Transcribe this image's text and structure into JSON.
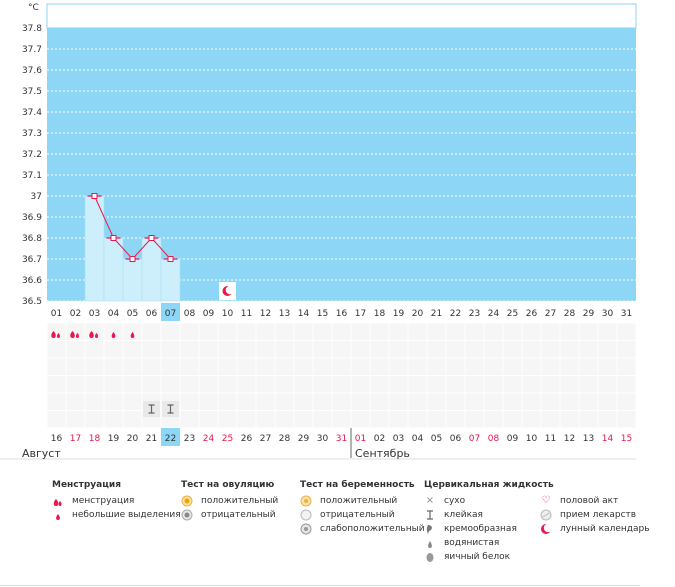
{
  "chart_data": {
    "type": "line",
    "ylabel": "°C",
    "y_ticks": [
      "37.8",
      "37.7",
      "37.6",
      "37.5",
      "37.4",
      "37.3",
      "37.2",
      "37.1",
      "37",
      "36.9",
      "36.8",
      "36.7",
      "36.6",
      "36.5"
    ],
    "ylim": [
      36.5,
      37.8
    ],
    "day_labels": [
      "01",
      "02",
      "03",
      "04",
      "05",
      "06",
      "07",
      "08",
      "09",
      "10",
      "11",
      "12",
      "13",
      "14",
      "15",
      "16",
      "17",
      "18",
      "19",
      "20",
      "21",
      "22",
      "23",
      "24",
      "25",
      "26",
      "27",
      "28",
      "29",
      "30",
      "31"
    ],
    "today_index": 6,
    "temps": [
      {
        "day": 3,
        "value": 37.0
      },
      {
        "day": 4,
        "value": 36.8
      },
      {
        "day": 5,
        "value": 36.7
      },
      {
        "day": 6,
        "value": 36.8
      },
      {
        "day": 7,
        "value": 36.7
      }
    ],
    "moon_day": 10,
    "menstruation": [
      {
        "day": 1,
        "type": "full"
      },
      {
        "day": 2,
        "type": "full"
      },
      {
        "day": 3,
        "type": "full"
      },
      {
        "day": 4,
        "type": "light"
      },
      {
        "day": 5,
        "type": "light"
      }
    ],
    "cervical_sticky_days": [
      6,
      7
    ],
    "cycle_dates": [
      {
        "t": "16",
        "red": false
      },
      {
        "t": "17",
        "red": true
      },
      {
        "t": "18",
        "red": true
      },
      {
        "t": "19",
        "red": false
      },
      {
        "t": "20",
        "red": false
      },
      {
        "t": "21",
        "red": false
      },
      {
        "t": "22",
        "red": false
      },
      {
        "t": "23",
        "red": false
      },
      {
        "t": "24",
        "red": true
      },
      {
        "t": "25",
        "red": true
      },
      {
        "t": "26",
        "red": false
      },
      {
        "t": "27",
        "red": false
      },
      {
        "t": "28",
        "red": false
      },
      {
        "t": "29",
        "red": false
      },
      {
        "t": "30",
        "red": false
      },
      {
        "t": "31",
        "red": true
      },
      {
        "t": "01",
        "red": true
      },
      {
        "t": "02",
        "red": false
      },
      {
        "t": "03",
        "red": false
      },
      {
        "t": "04",
        "red": false
      },
      {
        "t": "05",
        "red": false
      },
      {
        "t": "06",
        "red": false
      },
      {
        "t": "07",
        "red": true
      },
      {
        "t": "08",
        "red": true
      },
      {
        "t": "09",
        "red": false
      },
      {
        "t": "10",
        "red": false
      },
      {
        "t": "11",
        "red": false
      },
      {
        "t": "12",
        "red": false
      },
      {
        "t": "13",
        "red": false
      },
      {
        "t": "14",
        "red": true
      },
      {
        "t": "15",
        "red": true
      }
    ],
    "cycle_today_index": 6
  },
  "months": {
    "first": "Август",
    "second": "Сентябрь"
  },
  "colors": {
    "sky": "#8ed6f5",
    "bar": "#cdeefb",
    "today": "#8ed6f5",
    "line": "#e8174d",
    "red": "#e8174d"
  },
  "legend": {
    "menstruation": {
      "title": "Менструация",
      "items": [
        "менструация",
        "небольшие выделения"
      ]
    },
    "ovulation": {
      "title": "Тест на овуляцию",
      "items": [
        "положительный",
        "отрицательный"
      ]
    },
    "pregnancy": {
      "title": "Тест на беременность",
      "items": [
        "положительный",
        "отрицательный",
        "слабоположительный"
      ]
    },
    "cervical": {
      "title": "Цервикальная жидкость",
      "items": [
        "сухо",
        "клейкая",
        "кремообразная",
        "водянистая",
        "яичный белок"
      ]
    },
    "other": {
      "items": [
        "половой акт",
        "прием лекарств",
        "лунный календарь"
      ]
    }
  }
}
